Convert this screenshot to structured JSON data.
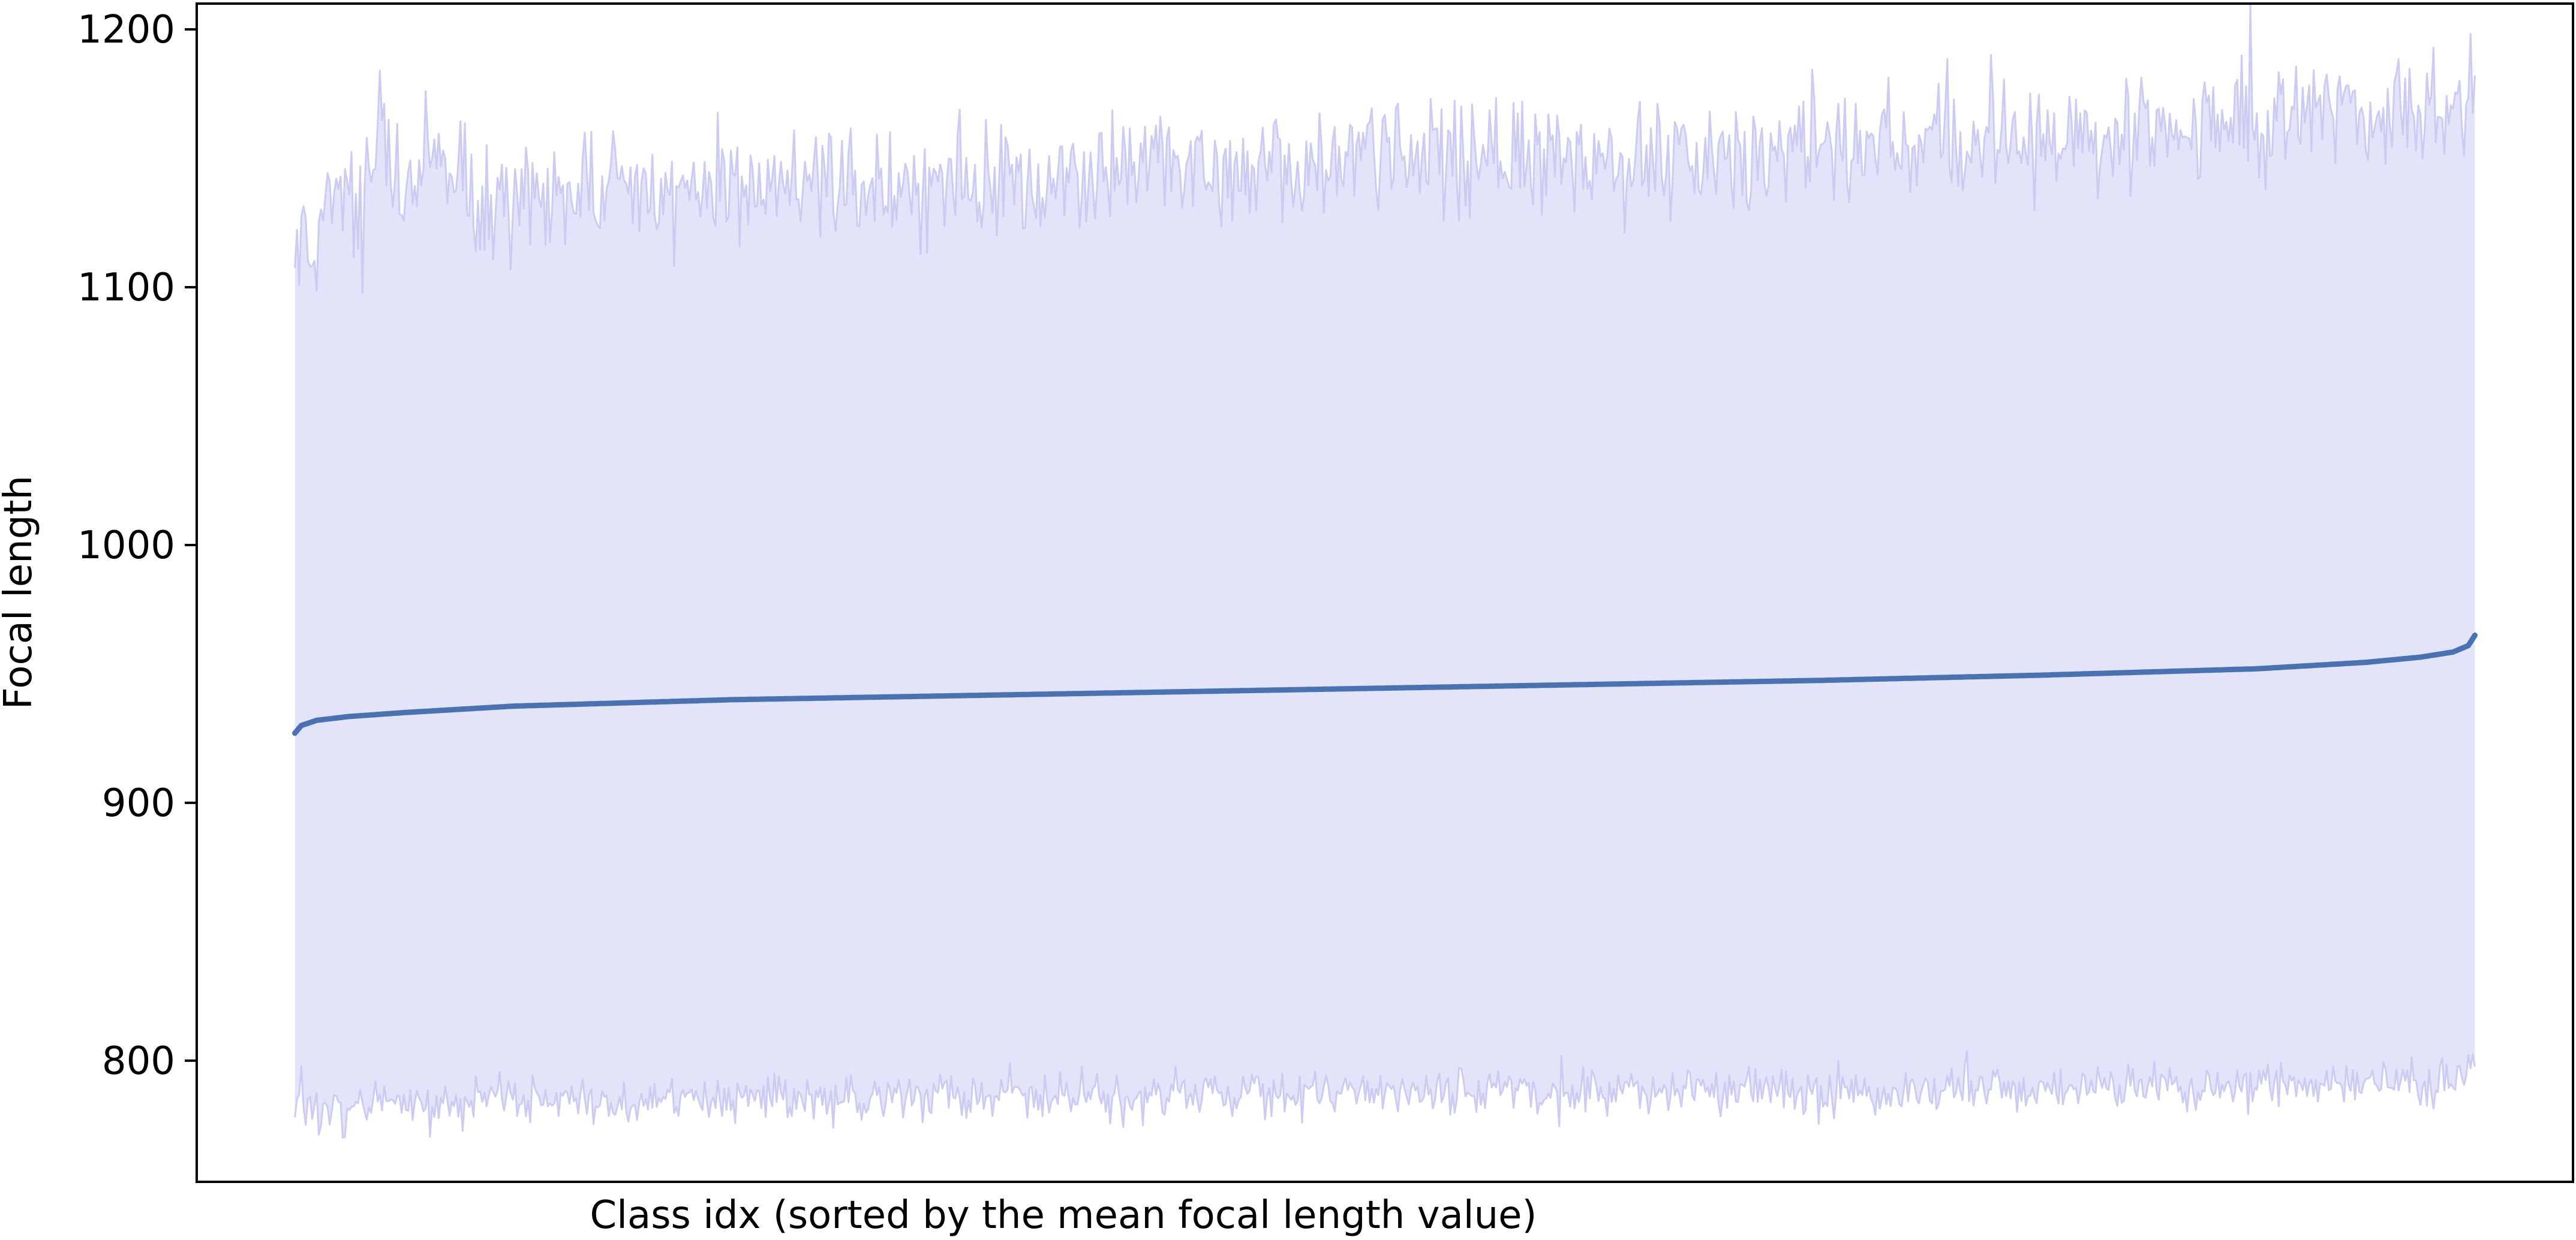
{
  "chart_data": {
    "type": "area",
    "xlabel": "Class idx (sorted by the mean focal length value)",
    "ylabel": "Focal length",
    "ylim": [
      753,
      1210
    ],
    "xlim": [
      -45,
      1045
    ],
    "n_points": 1001,
    "x_ticks_visible": false,
    "grid": false,
    "legend": "none",
    "yticks": [
      {
        "value": 800,
        "label": "800"
      },
      {
        "value": 900,
        "label": "900"
      },
      {
        "value": 1000,
        "label": "1000"
      },
      {
        "value": 1100,
        "label": "1100"
      },
      {
        "value": 1200,
        "label": "1200"
      }
    ],
    "series": [
      {
        "kind": "mean-line",
        "color": "#4a72b0",
        "x": [
          0,
          3,
          10,
          25,
          50,
          100,
          200,
          300,
          400,
          500,
          600,
          700,
          800,
          900,
          950,
          975,
          990,
          997,
          1000
        ],
        "y": [
          927,
          930,
          932,
          933.5,
          935,
          937.5,
          940,
          941.5,
          943,
          944.5,
          946,
          947.5,
          949.5,
          952,
          954.5,
          956.5,
          958.5,
          961,
          965
        ]
      },
      {
        "kind": "upper-bound",
        "color": "#ccccf3",
        "x": [
          0,
          1,
          2,
          3,
          5,
          10,
          20,
          30,
          40,
          50,
          60,
          80,
          100,
          150,
          200,
          250,
          300,
          350,
          400,
          450,
          500,
          550,
          600,
          650,
          700,
          750,
          800,
          850,
          900,
          950,
          980,
          1000
        ],
        "y": [
          1108,
          1120,
          1105,
          1132,
          1118,
          1122,
          1140,
          1130,
          1160,
          1128,
          1150,
          1133,
          1136,
          1138,
          1140,
          1138,
          1145,
          1142,
          1148,
          1144,
          1150,
          1147,
          1152,
          1150,
          1154,
          1157,
          1158,
          1162,
          1164,
          1168,
          1170,
          1172
        ]
      },
      {
        "kind": "lower-bound",
        "color": "#ccccf3",
        "x": [
          0,
          1,
          2,
          3,
          5,
          10,
          20,
          30,
          50,
          100,
          150,
          200,
          250,
          300,
          350,
          400,
          450,
          500,
          550,
          600,
          650,
          700,
          750,
          800,
          850,
          900,
          950,
          980,
          1000
        ],
        "y": [
          782,
          784,
          779,
          786,
          778,
          782,
          781,
          783,
          784,
          785,
          784,
          786,
          785,
          786,
          787,
          786,
          788,
          787,
          788,
          787,
          789,
          788,
          789,
          789,
          790,
          790,
          791,
          792,
          798
        ]
      }
    ]
  }
}
